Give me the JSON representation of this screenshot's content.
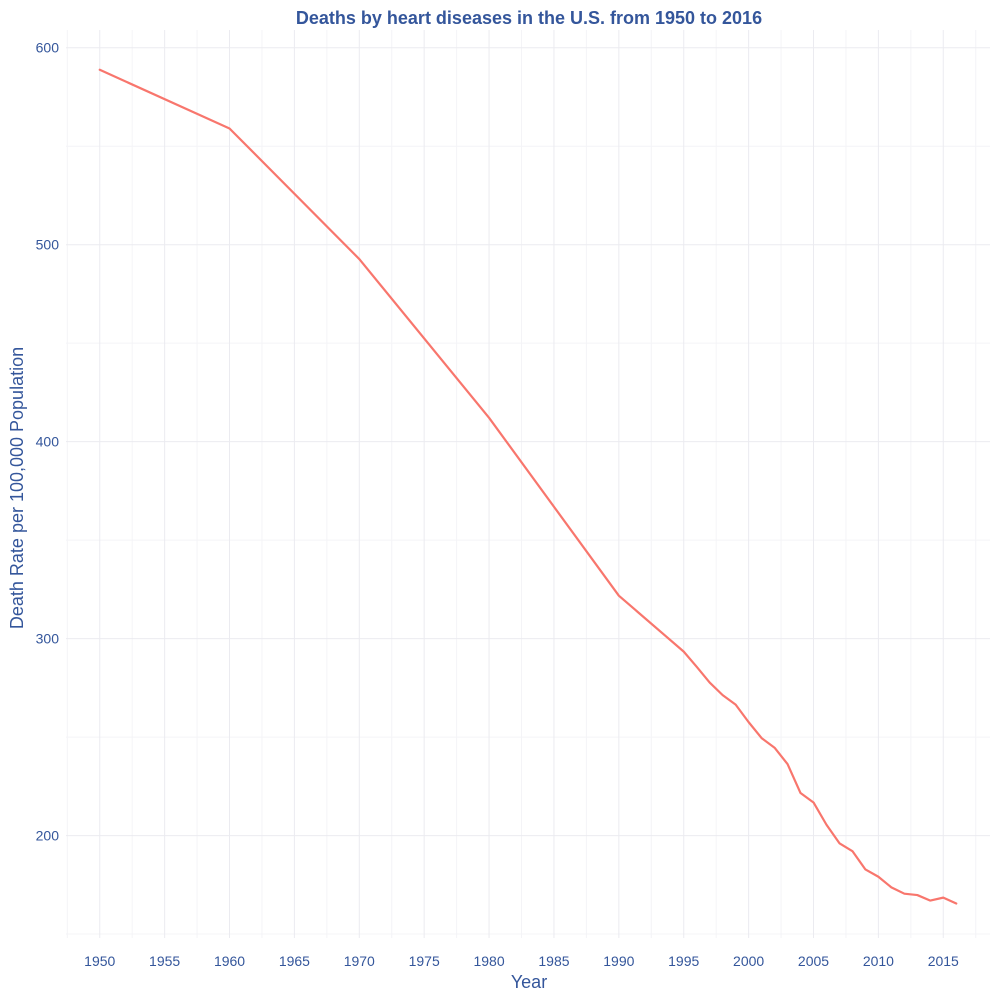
{
  "chart_data": {
    "type": "line",
    "title": "Deaths by heart diseases in the U.S. from 1950 to 2016",
    "xlabel": "Year",
    "ylabel": "Death Rate per 100,000 Population",
    "xlim": [
      1947.4,
      2018.6
    ],
    "ylim": [
      148,
      609
    ],
    "x_ticks": [
      1950,
      1955,
      1960,
      1965,
      1970,
      1975,
      1980,
      1985,
      1990,
      1995,
      2000,
      2005,
      2010,
      2015
    ],
    "y_ticks": [
      200,
      300,
      400,
      500,
      600
    ],
    "grid": true,
    "series": [
      {
        "color": "#F8766D",
        "x": [
          1950,
          1960,
          1970,
          1980,
          1990,
          1995,
          1996,
          1997,
          1998,
          1999,
          2000,
          2001,
          2002,
          2003,
          2004,
          2005,
          2006,
          2007,
          2008,
          2009,
          2010,
          2011,
          2012,
          2013,
          2014,
          2015,
          2016
        ],
        "y": [
          588.8,
          559.0,
          492.7,
          412.1,
          321.8,
          293.4,
          285.7,
          277.7,
          271.3,
          266.5,
          257.6,
          249.5,
          244.6,
          236.3,
          221.6,
          216.8,
          205.5,
          196.1,
          192.1,
          182.8,
          179.1,
          173.7,
          170.5,
          169.8,
          167.0,
          168.5,
          165.5
        ]
      }
    ],
    "colors": {
      "text": "#34569B",
      "grid_major": "#EBEBF0",
      "grid_minor": "#F4F4F7",
      "background": "#FFFFFF"
    }
  }
}
